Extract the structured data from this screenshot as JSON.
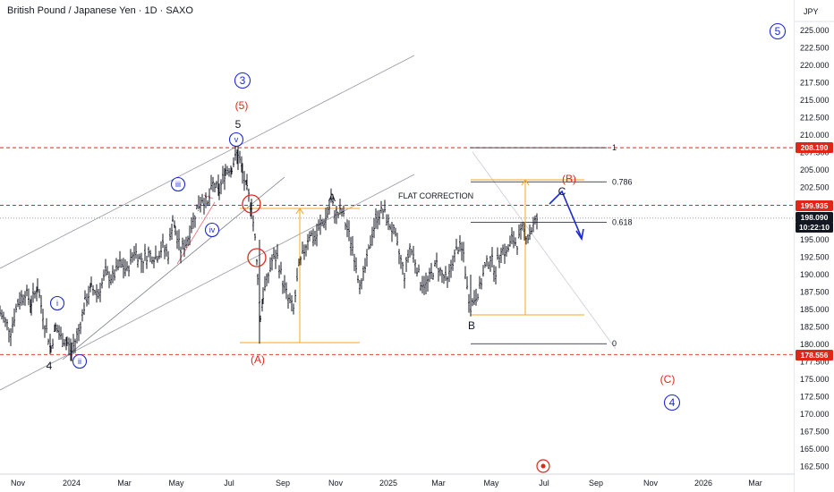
{
  "title": "British Pound / Japanese Yen · 1D · SAXO",
  "currency": "JPY",
  "colors": {
    "bar": "#131722",
    "red": "#e0251b",
    "blue": "#1c2bd1",
    "orange": "#f5a623",
    "gray": "#9598a1",
    "pink": "#f2a3a8"
  },
  "chart_data": {
    "type": "ohlc",
    "ylim": [
      161.5,
      229.0
    ],
    "y_ticks": [
      "162.500",
      "165.000",
      "167.500",
      "170.000",
      "172.500",
      "175.000",
      "177.500",
      "180.000",
      "182.500",
      "185.000",
      "187.500",
      "190.000",
      "192.500",
      "195.000",
      "197.500",
      "200.000",
      "202.500",
      "205.000",
      "207.500",
      "210.000",
      "212.500",
      "215.000",
      "217.500",
      "220.000",
      "222.500",
      "225.000"
    ],
    "x_ticks": [
      "Nov",
      "2024",
      "Mar",
      "May",
      "Jul",
      "Sep",
      "Nov",
      "2025",
      "Mar",
      "May",
      "Jul",
      "Sep",
      "Nov",
      "2026",
      "Mar"
    ],
    "price_badges": [
      {
        "value": "208.190",
        "color": "red"
      },
      {
        "value": "199.935",
        "color": "red"
      },
      {
        "value": "198.090",
        "color": "black"
      },
      {
        "value": "10:22:10",
        "color": "black"
      },
      {
        "value": "178.556",
        "color": "red"
      }
    ],
    "horizontal_levels": [
      {
        "price": 208.19,
        "style": "dashed-red"
      },
      {
        "price": 199.935,
        "style": "dashed-red"
      },
      {
        "price": 178.556,
        "style": "dashed-red"
      },
      {
        "price": 198.09,
        "style": "dotted-gray"
      }
    ],
    "fib_levels": [
      {
        "label": "1",
        "price": 208.19
      },
      {
        "label": "0.786",
        "price": 203.3
      },
      {
        "label": "0.618",
        "price": 197.5
      },
      {
        "label": "0",
        "price": 180.1
      }
    ],
    "annotations": {
      "flat_correction": "FLAT CORRECTION"
    },
    "wave_labels": [
      {
        "text": "3",
        "style": "blue-circle"
      },
      {
        "text": "(5)",
        "style": "red"
      },
      {
        "text": "5",
        "style": "black"
      },
      {
        "text": "v",
        "style": "blue-circle-small"
      },
      {
        "text": "iii",
        "style": "blue-circle-small"
      },
      {
        "text": "iv",
        "style": "blue-circle-small"
      },
      {
        "text": "i",
        "style": "blue-circle-small"
      },
      {
        "text": "ii",
        "style": "blue-circle-small"
      },
      {
        "text": "4",
        "style": "black"
      },
      {
        "text": "A",
        "style": "black"
      },
      {
        "text": "(A)",
        "style": "red"
      },
      {
        "text": "B",
        "style": "black"
      },
      {
        "text": "(B)",
        "style": "red"
      },
      {
        "text": "C",
        "style": "black"
      },
      {
        "text": "(C)",
        "style": "red"
      },
      {
        "text": "4",
        "style": "blue-circle"
      },
      {
        "text": "5",
        "style": "blue-circle"
      }
    ],
    "anchors": [
      [
        0,
        184.5
      ],
      [
        12,
        182.0
      ],
      [
        20,
        186.0
      ],
      [
        28,
        187.5
      ],
      [
        35,
        186.0
      ],
      [
        42,
        188.2
      ],
      [
        50,
        183.0
      ],
      [
        57,
        179.5
      ],
      [
        62,
        182.5
      ],
      [
        68,
        181.0
      ],
      [
        75,
        180.2
      ],
      [
        80,
        179.0
      ],
      [
        88,
        182.0
      ],
      [
        95,
        186.0
      ],
      [
        102,
        188.0
      ],
      [
        110,
        187.5
      ],
      [
        118,
        190.0
      ],
      [
        126,
        189.5
      ],
      [
        134,
        191.5
      ],
      [
        142,
        190.5
      ],
      [
        150,
        193.5
      ],
      [
        158,
        192.0
      ],
      [
        166,
        193.0
      ],
      [
        174,
        192.5
      ],
      [
        182,
        194.0
      ],
      [
        188,
        193.0
      ],
      [
        193,
        198.0
      ],
      [
        196,
        196.0
      ],
      [
        202,
        193.5
      ],
      [
        208,
        194.5
      ],
      [
        214,
        197.0
      ],
      [
        220,
        199.5
      ],
      [
        226,
        201.0
      ],
      [
        232,
        200.0
      ],
      [
        238,
        203.0
      ],
      [
        245,
        202.0
      ],
      [
        252,
        205.0
      ],
      [
        259,
        205.5
      ],
      [
        266,
        207.5
      ],
      [
        271,
        204.5
      ],
      [
        276,
        202.0
      ],
      [
        281,
        200.0
      ],
      [
        285,
        195.0
      ],
      [
        288,
        190.0
      ],
      [
        291,
        184.0
      ],
      [
        294,
        187.0
      ],
      [
        298,
        189.0
      ],
      [
        304,
        192.0
      ],
      [
        310,
        192.5
      ],
      [
        316,
        189.0
      ],
      [
        322,
        186.5
      ],
      [
        328,
        185.0
      ],
      [
        334,
        191.0
      ],
      [
        340,
        193.5
      ],
      [
        346,
        196.0
      ],
      [
        352,
        195.0
      ],
      [
        358,
        197.0
      ],
      [
        364,
        198.0
      ],
      [
        370,
        200.5
      ],
      [
        376,
        198.5
      ],
      [
        382,
        199.0
      ],
      [
        388,
        196.5
      ],
      [
        394,
        194.0
      ],
      [
        400,
        190.0
      ],
      [
        404,
        188.5
      ],
      [
        410,
        192.0
      ],
      [
        416,
        196.0
      ],
      [
        422,
        198.5
      ],
      [
        428,
        199.2
      ],
      [
        434,
        197.5
      ],
      [
        440,
        196.0
      ],
      [
        446,
        193.0
      ],
      [
        452,
        190.0
      ],
      [
        458,
        194.0
      ],
      [
        464,
        192.0
      ],
      [
        470,
        189.0
      ],
      [
        476,
        188.5
      ],
      [
        482,
        190.0
      ],
      [
        488,
        191.5
      ],
      [
        494,
        190.0
      ],
      [
        500,
        189.0
      ],
      [
        506,
        192.0
      ],
      [
        512,
        194.0
      ],
      [
        518,
        193.0
      ],
      [
        522,
        188.0
      ],
      [
        526,
        185.5
      ],
      [
        530,
        186.5
      ],
      [
        536,
        188.0
      ],
      [
        542,
        191.0
      ],
      [
        548,
        192.5
      ],
      [
        554,
        190.5
      ],
      [
        560,
        194.0
      ],
      [
        566,
        193.0
      ],
      [
        572,
        195.0
      ],
      [
        578,
        194.5
      ],
      [
        584,
        196.5
      ],
      [
        590,
        195.5
      ],
      [
        596,
        197.0
      ],
      [
        602,
        198.5
      ]
    ]
  }
}
